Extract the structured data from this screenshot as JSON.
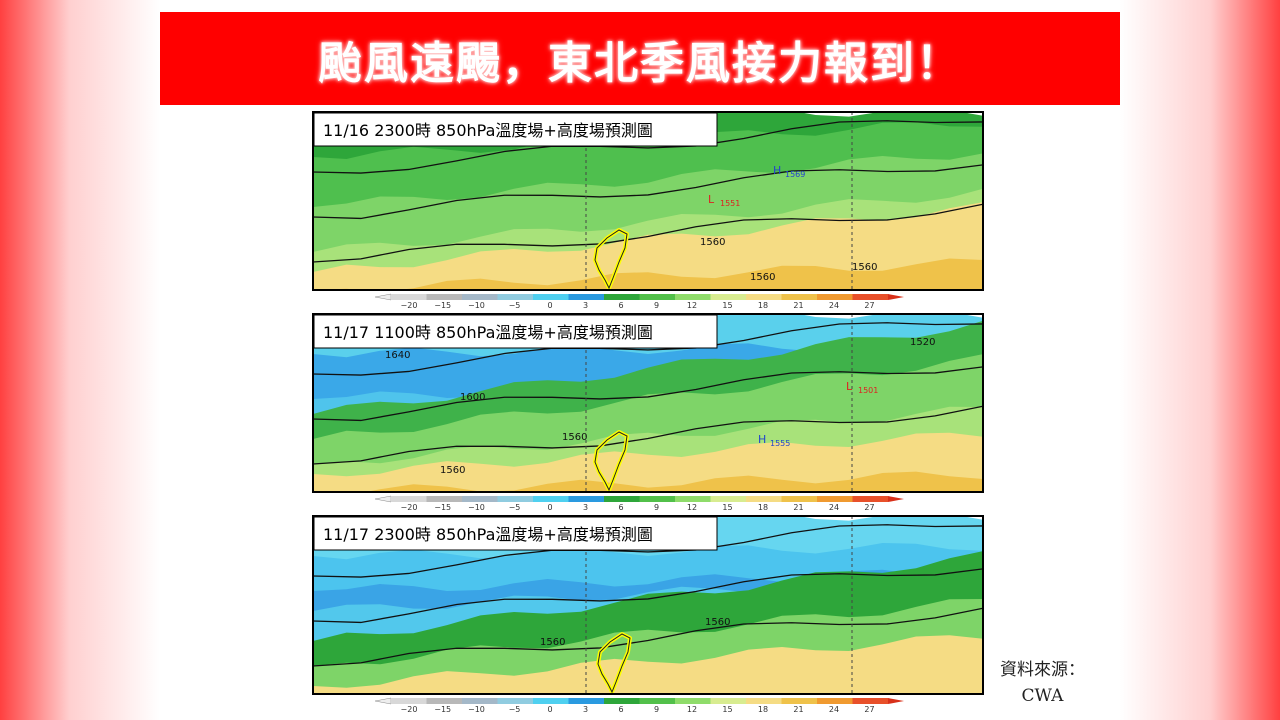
{
  "header": {
    "title": "颱風遠颺，東北季風接力報到！"
  },
  "panels": [
    {
      "label": "11/16 2300時  850hPa溫度場+高度場預測圖",
      "contours": [
        {
          "mark": "H",
          "text": "1569"
        },
        {
          "mark": "L",
          "text": "1551"
        },
        {
          "mark": "",
          "text": "1560"
        },
        {
          "mark": "",
          "text": "1560"
        },
        {
          "mark": "",
          "text": "1560"
        }
      ]
    },
    {
      "label": "11/17 1100時  850hPa溫度場+高度場預測圖",
      "contours": [
        {
          "mark": "",
          "text": "1640"
        },
        {
          "mark": "",
          "text": "1600"
        },
        {
          "mark": "",
          "text": "1560"
        },
        {
          "mark": "",
          "text": "1560"
        },
        {
          "mark": "L",
          "text": "1501"
        },
        {
          "mark": "H",
          "text": "1555"
        },
        {
          "mark": "",
          "text": "1520"
        }
      ]
    },
    {
      "label": "11/17 2300時  850hPa溫度場+高度場預測圖",
      "contours": [
        {
          "mark": "",
          "text": "1560"
        },
        {
          "mark": "",
          "text": "1560"
        }
      ]
    }
  ],
  "colorbar": {
    "ticks": [
      "−20",
      "−15",
      "−10",
      "−5",
      "0",
      "3",
      "6",
      "9",
      "12",
      "15",
      "18",
      "21",
      "24",
      "27"
    ]
  },
  "source": {
    "label": "資料來源：",
    "name": "CWA"
  }
}
